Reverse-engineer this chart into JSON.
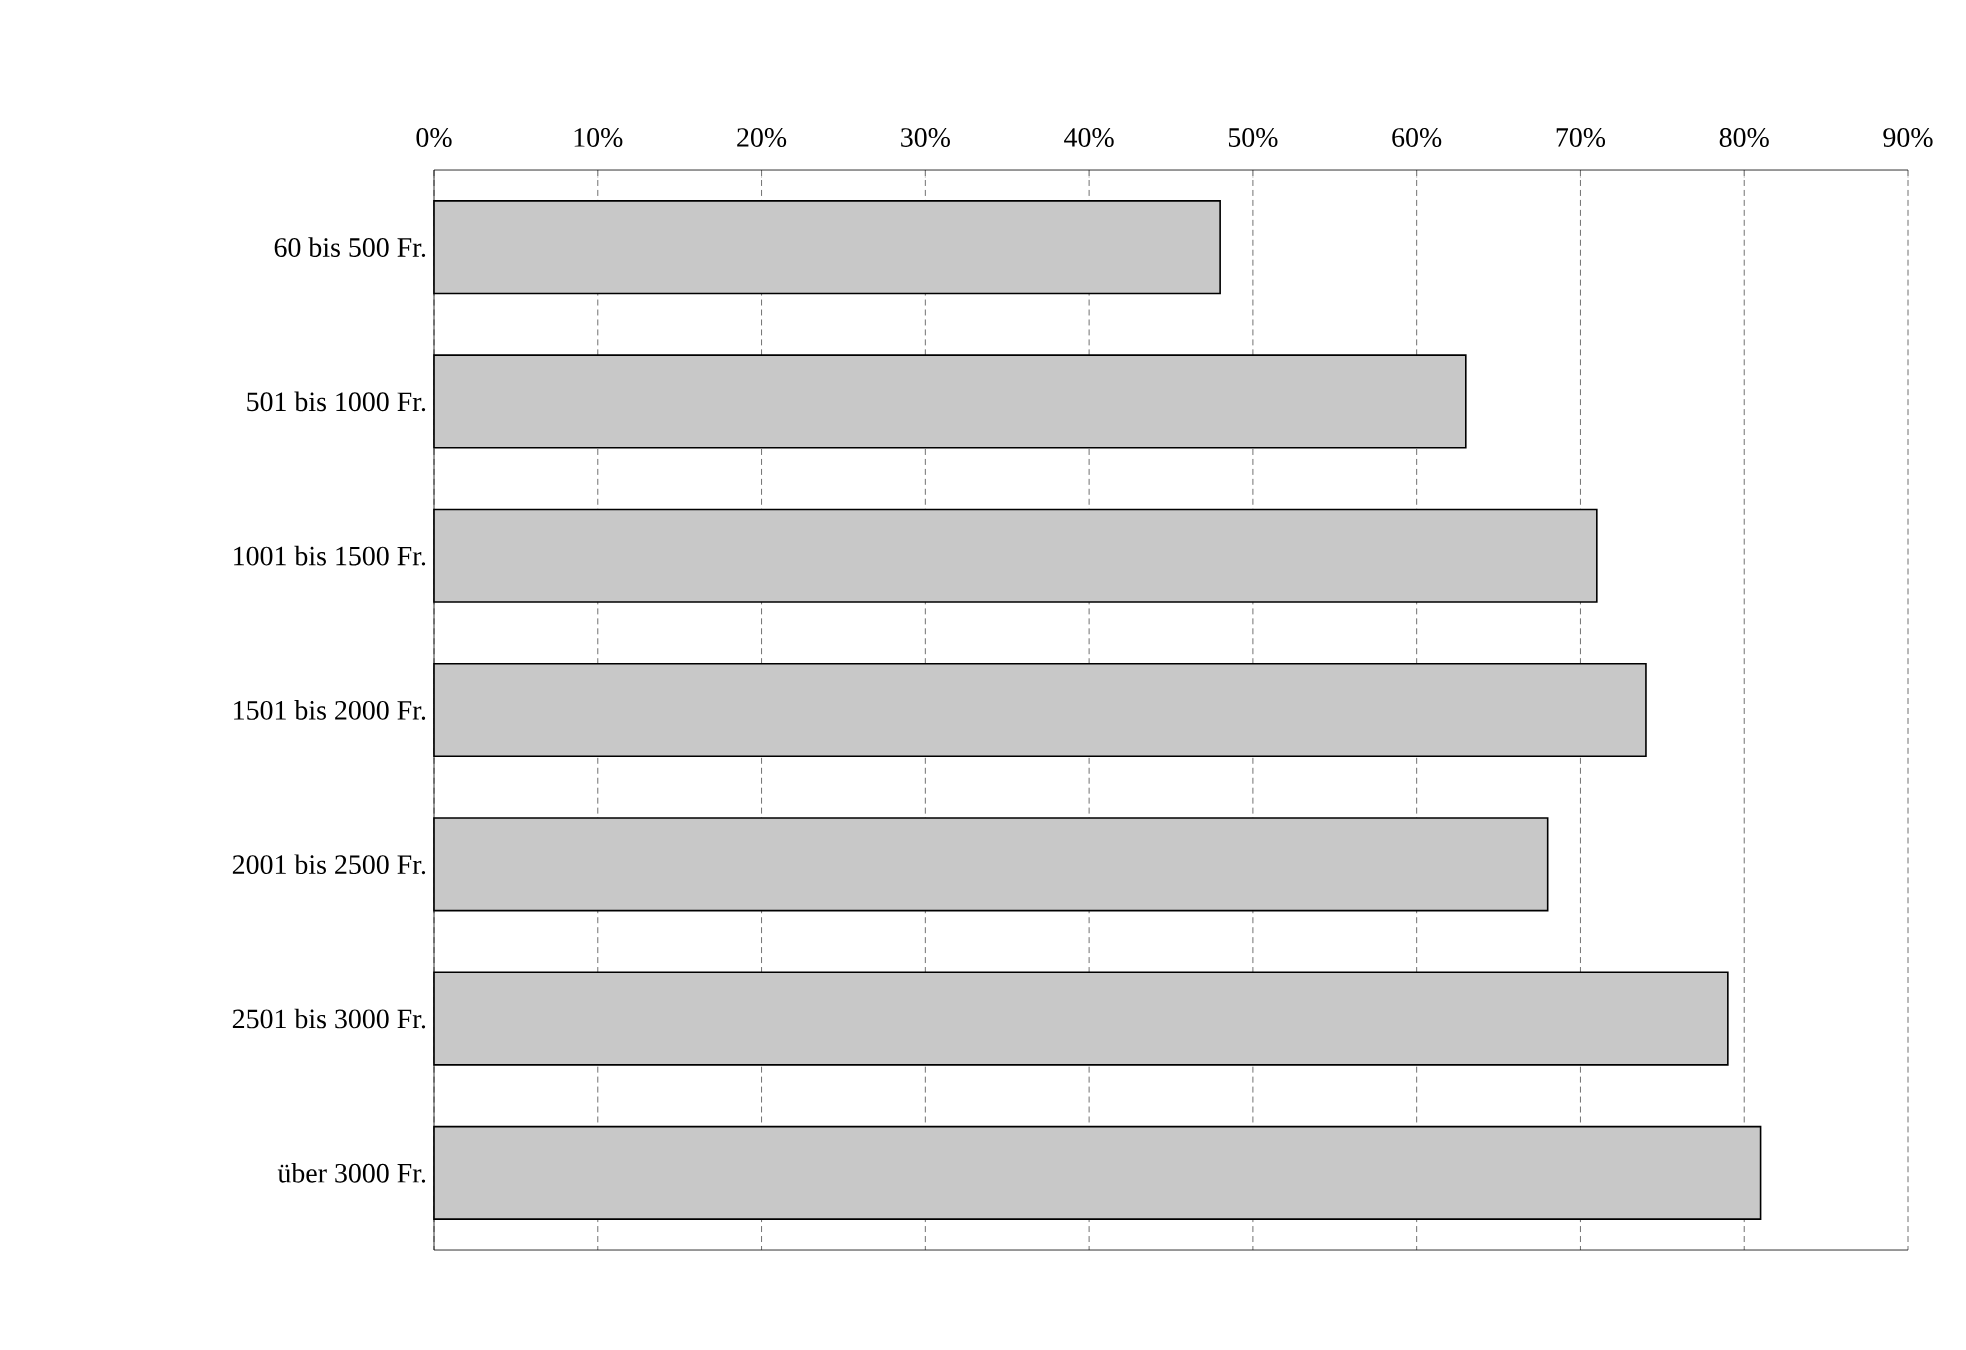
{
  "chart_data": {
    "type": "bar",
    "orientation": "horizontal",
    "categories": [
      "60 bis 500 Fr.",
      "501 bis 1000 Fr.",
      "1001 bis 1500 Fr.",
      "1501 bis 2000 Fr.",
      "2001 bis 2500 Fr.",
      "2501 bis 3000 Fr.",
      "über 3000 Fr."
    ],
    "values": [
      48,
      63,
      71,
      74,
      68,
      79,
      81
    ],
    "color": "#c8c8c8",
    "xlim": [
      0,
      90
    ],
    "xticks": [
      {
        "value": 0,
        "label": "0%"
      },
      {
        "value": 10,
        "label": "10%"
      },
      {
        "value": 20,
        "label": "20%"
      },
      {
        "value": 30,
        "label": "30%"
      },
      {
        "value": 40,
        "label": "40%"
      },
      {
        "value": 50,
        "label": "50%"
      },
      {
        "value": 60,
        "label": "60%"
      },
      {
        "value": 70,
        "label": "70%"
      },
      {
        "value": 80,
        "label": "80%"
      },
      {
        "value": 90,
        "label": "90%"
      }
    ],
    "grid": "x"
  }
}
